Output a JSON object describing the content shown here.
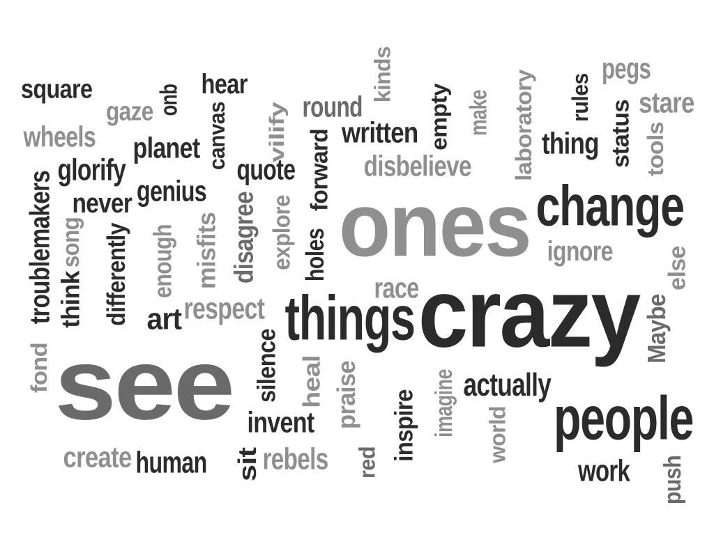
{
  "palette": {
    "dark": "#2b2b2b",
    "mid": "#6a6a6a",
    "light": "#8f8f8f"
  },
  "words": [
    {
      "text": "square",
      "tone": "dark"
    },
    {
      "text": "gaze",
      "tone": "light"
    },
    {
      "text": "quo",
      "tone": "dark"
    },
    {
      "text": "hear",
      "tone": "dark"
    },
    {
      "text": "canvas",
      "tone": "dark"
    },
    {
      "text": "vilify",
      "tone": "light"
    },
    {
      "text": "round",
      "tone": "mid"
    },
    {
      "text": "kinds",
      "tone": "light"
    },
    {
      "text": "written",
      "tone": "dark"
    },
    {
      "text": "empty",
      "tone": "dark"
    },
    {
      "text": "make",
      "tone": "light"
    },
    {
      "text": "laboratory",
      "tone": "light"
    },
    {
      "text": "rules",
      "tone": "dark"
    },
    {
      "text": "pegs",
      "tone": "light"
    },
    {
      "text": "stare",
      "tone": "light"
    },
    {
      "text": "wheels",
      "tone": "light"
    },
    {
      "text": "planet",
      "tone": "dark"
    },
    {
      "text": "glorify",
      "tone": "dark"
    },
    {
      "text": "quote",
      "tone": "dark"
    },
    {
      "text": "forward",
      "tone": "dark"
    },
    {
      "text": "disbelieve",
      "tone": "light"
    },
    {
      "text": "thing",
      "tone": "dark"
    },
    {
      "text": "status",
      "tone": "dark"
    },
    {
      "text": "tools",
      "tone": "light"
    },
    {
      "text": "genius",
      "tone": "dark"
    },
    {
      "text": "never",
      "tone": "dark"
    },
    {
      "text": "troublemakers",
      "tone": "dark"
    },
    {
      "text": "song",
      "tone": "light"
    },
    {
      "text": "ones",
      "tone": "light"
    },
    {
      "text": "change",
      "tone": "dark"
    },
    {
      "text": "differently",
      "tone": "dark"
    },
    {
      "text": "enough",
      "tone": "light"
    },
    {
      "text": "misfits",
      "tone": "light"
    },
    {
      "text": "disagree",
      "tone": "mid"
    },
    {
      "text": "explore",
      "tone": "light"
    },
    {
      "text": "holes",
      "tone": "dark"
    },
    {
      "text": "ignore",
      "tone": "light"
    },
    {
      "text": "think",
      "tone": "dark"
    },
    {
      "text": "else",
      "tone": "light"
    },
    {
      "text": "race",
      "tone": "light"
    },
    {
      "text": "art",
      "tone": "dark"
    },
    {
      "text": "respect",
      "tone": "light"
    },
    {
      "text": "things",
      "tone": "dark"
    },
    {
      "text": "crazy",
      "tone": "dark"
    },
    {
      "text": "Maybe",
      "tone": "mid"
    },
    {
      "text": "fond",
      "tone": "light"
    },
    {
      "text": "see",
      "tone": "mid"
    },
    {
      "text": "silence",
      "tone": "dark"
    },
    {
      "text": "heal",
      "tone": "light"
    },
    {
      "text": "praise",
      "tone": "light"
    },
    {
      "text": "imagine",
      "tone": "light"
    },
    {
      "text": "actually",
      "tone": "dark"
    },
    {
      "text": "people",
      "tone": "dark"
    },
    {
      "text": "invent",
      "tone": "dark"
    },
    {
      "text": "inspire",
      "tone": "dark"
    },
    {
      "text": "world",
      "tone": "light"
    },
    {
      "text": "create",
      "tone": "light"
    },
    {
      "text": "human",
      "tone": "dark"
    },
    {
      "text": "sit",
      "tone": "dark"
    },
    {
      "text": "rebels",
      "tone": "light"
    },
    {
      "text": "red",
      "tone": "mid"
    },
    {
      "text": "work",
      "tone": "dark"
    },
    {
      "text": "push",
      "tone": "mid"
    }
  ]
}
